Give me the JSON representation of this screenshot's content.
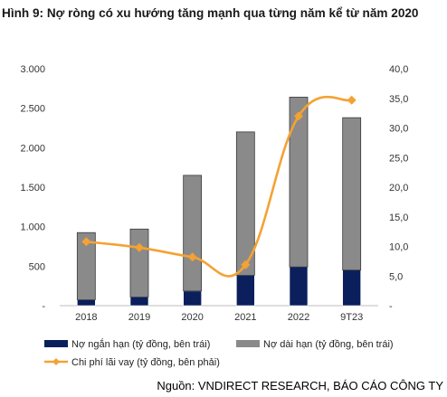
{
  "title": "Hình 9: Nợ ròng có xu hướng tăng mạnh qua từng năm kể từ năm 2020",
  "source": "Nguồn: VNDIRECT RESEARCH, BÁO CÁO CÔNG TY",
  "colors": {
    "short_term": "#0a1f5c",
    "long_term": "#8a8a8a",
    "interest": "#f4a233",
    "axis": "#bfbfbf"
  },
  "chart_data": {
    "type": "bar",
    "stacked": true,
    "categories": [
      "2018",
      "2019",
      "2020",
      "2021",
      "2022",
      "9T23"
    ],
    "series": [
      {
        "name": "Nợ ngắn hạn (tỷ đồng, bên trái)",
        "axis": "left",
        "kind": "bar",
        "values": [
          75,
          110,
          185,
          385,
          490,
          450
        ]
      },
      {
        "name": "Nợ dài hạn (tỷ đồng, bên trái)",
        "axis": "left",
        "kind": "bar",
        "values": [
          850,
          860,
          1465,
          1815,
          2150,
          1930
        ]
      },
      {
        "name": "Chi phí lãi vay (tỷ đồng, bên phải)",
        "axis": "right",
        "kind": "line",
        "values": [
          10.8,
          9.8,
          8.2,
          6.9,
          32.0,
          34.7
        ]
      }
    ],
    "left_axis": {
      "min": 0,
      "max": 3000,
      "ticks": [
        0,
        500,
        1000,
        1500,
        2000,
        2500,
        3000
      ],
      "tick_labels": [
        "-",
        "500",
        "1.000",
        "1.500",
        "2.000",
        "2.500",
        "3.000"
      ]
    },
    "right_axis": {
      "min": 0,
      "max": 40,
      "ticks": [
        0,
        5,
        10,
        15,
        20,
        25,
        30,
        35,
        40
      ],
      "tick_labels": [
        "-",
        "5,0",
        "10,0",
        "15,0",
        "20,0",
        "25,0",
        "30,0",
        "35,0",
        "40,0"
      ]
    },
    "grid": false,
    "legend_position": "bottom"
  }
}
